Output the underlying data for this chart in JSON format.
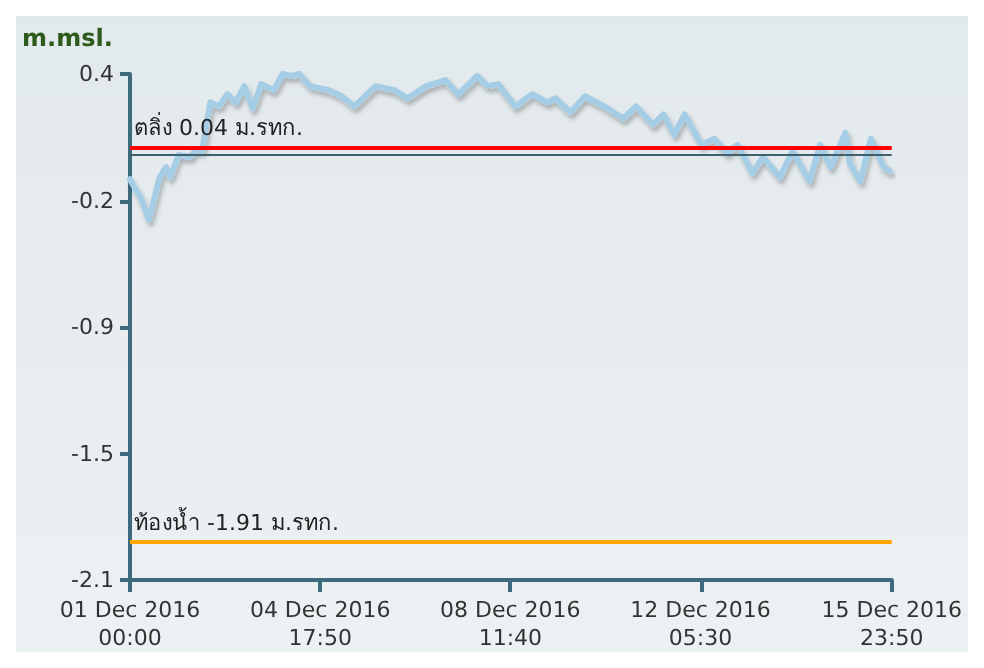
{
  "chart_data": {
    "type": "line",
    "ylabel": "m.msl.",
    "x": [
      "2016-12-01T00:00",
      "2016-12-01T01:00",
      "2016-12-01T05:00",
      "2016-12-01T09:00",
      "2016-12-01T14:00",
      "2016-12-01T17:00",
      "2016-12-01T19:00",
      "2016-12-01T23:00",
      "2016-12-02T04:00",
      "2016-12-02T08:00",
      "2016-12-02T10:00",
      "2016-12-02T14:00",
      "2016-12-02T18:00",
      "2016-12-02T22:00",
      "2016-12-03T02:00",
      "2016-12-03T06:00",
      "2016-12-03T10:00",
      "2016-12-03T14:00",
      "2016-12-03T20:00",
      "2016-12-04T00:00",
      "2016-12-04T04:00",
      "2016-12-04T08:00",
      "2016-12-04T13:00",
      "2016-12-04T22:00",
      "2016-12-05T04:00",
      "2016-12-05T10:00",
      "2016-12-05T20:00",
      "2016-12-06T05:00",
      "2016-12-06T11:00",
      "2016-12-06T20:00",
      "2016-12-07T05:00",
      "2016-12-07T11:00",
      "2016-12-07T20:00",
      "2016-12-08T01:00",
      "2016-12-08T06:00",
      "2016-12-08T14:00",
      "2016-12-08T22:00",
      "2016-12-09T05:00",
      "2016-12-09T09:00",
      "2016-12-09T16:00",
      "2016-12-09T23:00",
      "2016-12-10T08:00",
      "2016-12-10T17:00",
      "2016-12-10T23:00",
      "2016-12-11T07:00",
      "2016-12-11T12:00",
      "2016-12-11T17:00",
      "2016-12-11T22:00",
      "2016-12-12T06:00",
      "2016-12-12T12:00",
      "2016-12-12T18:00",
      "2016-12-12T23:00",
      "2016-12-13T06:00",
      "2016-12-13T11:00",
      "2016-12-13T19:00",
      "2016-12-14T01:00",
      "2016-12-14T09:00",
      "2016-12-14T14:00",
      "2016-12-14T19:00",
      "2016-12-15T02:00",
      "2016-12-15T04:00",
      "2016-12-15T09:00",
      "2016-12-15T14:00",
      "2016-12-15T20:00",
      "2016-12-15T23:00"
    ],
    "series": [
      {
        "color": "#a6cde6",
        "values": [
          -0.12,
          -0.14,
          -0.21,
          -0.32,
          -0.11,
          -0.06,
          -0.11,
          0.0,
          -0.01,
          0.03,
          0.02,
          0.26,
          0.24,
          0.3,
          0.26,
          0.34,
          0.23,
          0.35,
          0.32,
          0.4,
          0.39,
          0.4,
          0.34,
          0.32,
          0.29,
          0.24,
          0.34,
          0.32,
          0.28,
          0.34,
          0.37,
          0.3,
          0.39,
          0.34,
          0.35,
          0.24,
          0.3,
          0.26,
          0.28,
          0.21,
          0.29,
          0.24,
          0.18,
          0.24,
          0.15,
          0.2,
          0.1,
          0.2,
          0.05,
          0.08,
          0.01,
          0.05,
          -0.09,
          -0.01,
          -0.11,
          0.02,
          -0.13,
          0.05,
          -0.06,
          0.11,
          -0.04,
          -0.13,
          0.08,
          -0.06,
          -0.08
        ]
      }
    ],
    "xlim": [
      "2016-12-01T00:00",
      "2016-12-15T23:50"
    ],
    "xticks": [
      {
        "value": "2016-12-01T00:00",
        "label": "01 Dec 2016\n00:00"
      },
      {
        "value": "2016-12-04T17:50",
        "label": "04 Dec 2016\n17:50"
      },
      {
        "value": "2016-12-08T11:40",
        "label": "08 Dec 2016\n11:40"
      },
      {
        "value": "2016-12-12T05:30",
        "label": "12 Dec 2016\n05:30"
      },
      {
        "value": "2016-12-15T23:50",
        "label": "15 Dec 2016\n23:50"
      }
    ],
    "ylim": [
      -2.1,
      0.4
    ],
    "yticks": [
      0.4,
      {
        "value": -0.225,
        "label": "-0.2"
      },
      {
        "value": -0.85,
        "label": "-0.9"
      },
      {
        "value": -1.475,
        "label": "-1.5"
      },
      -2.1
    ],
    "ref_lines": [
      {
        "axis": "y",
        "value": 0.04,
        "label": "ตลิ่ง 0.04 ม.รทก.",
        "color": "#ff0000"
      },
      {
        "axis": "y",
        "value": 0,
        "label": null,
        "color": "#3d5f6e"
      },
      {
        "axis": "y",
        "value": -1.91,
        "label": "ท้องน้ำ -1.91 ม.รทก.",
        "color": "#ffa500"
      }
    ],
    "grid": false,
    "marker": "none",
    "line_style": "solid"
  }
}
